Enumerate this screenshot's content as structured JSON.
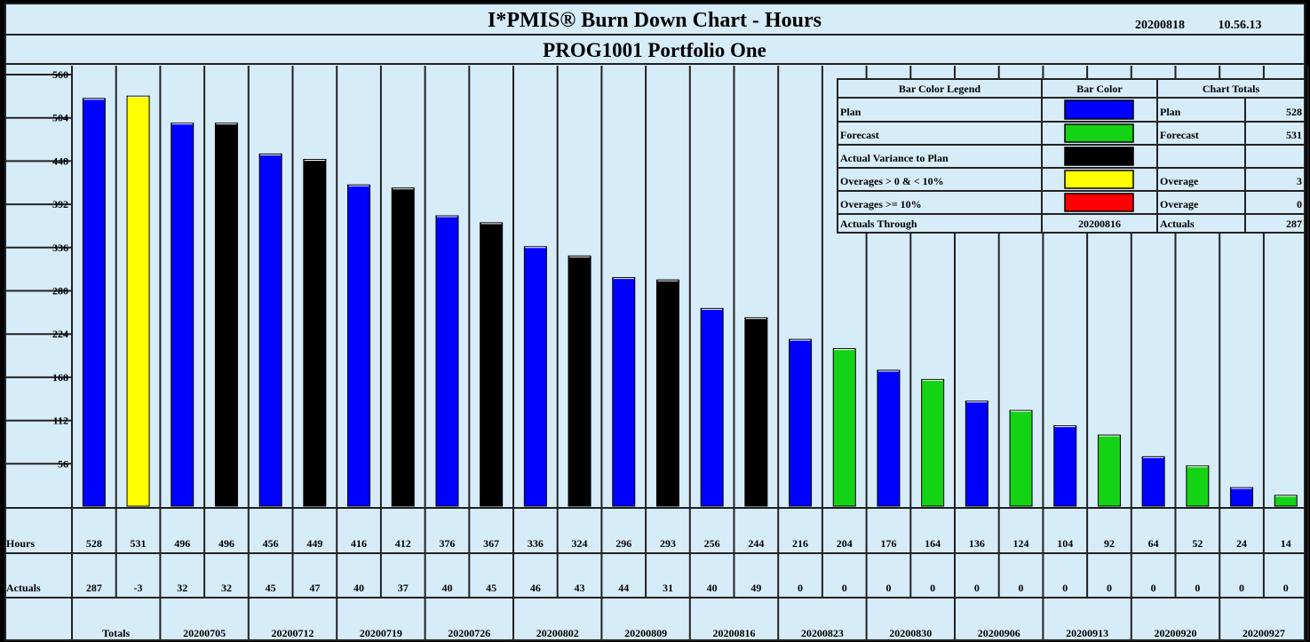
{
  "header": {
    "title": "I*PMIS® Burn Down Chart - Hours",
    "date": "20200818",
    "time": "10.56.13",
    "subtitle": "PROG1001 Portfolio One"
  },
  "colors": {
    "background": "#d6ecf8",
    "grid": "#222222",
    "plan": "#0000ff",
    "forecast": "#14d214",
    "actual_variance": "#000000",
    "overage_lt_10": "#ffff00",
    "overage_ge_10": "#ff0000"
  },
  "chart_data": {
    "type": "bar",
    "title": "I*PMIS® Burn Down Chart - Hours",
    "ylim": [
      0,
      560
    ],
    "yticks": [
      56,
      112,
      168,
      224,
      280,
      336,
      392,
      448,
      504,
      560
    ],
    "grid": true,
    "legend_position": "top-right",
    "bars": [
      {
        "hours": 528,
        "actuals": "287",
        "kind": "plan"
      },
      {
        "hours": 531,
        "actuals": "-3",
        "kind": "overage_lt_10"
      },
      {
        "hours": 496,
        "actuals": "32",
        "kind": "plan"
      },
      {
        "hours": 496,
        "actuals": "32",
        "kind": "actual_variance"
      },
      {
        "hours": 456,
        "actuals": "45",
        "kind": "plan"
      },
      {
        "hours": 449,
        "actuals": "47",
        "kind": "actual_variance"
      },
      {
        "hours": 416,
        "actuals": "40",
        "kind": "plan"
      },
      {
        "hours": 412,
        "actuals": "37",
        "kind": "actual_variance"
      },
      {
        "hours": 376,
        "actuals": "40",
        "kind": "plan"
      },
      {
        "hours": 367,
        "actuals": "45",
        "kind": "actual_variance"
      },
      {
        "hours": 336,
        "actuals": "46",
        "kind": "plan"
      },
      {
        "hours": 324,
        "actuals": "43",
        "kind": "actual_variance"
      },
      {
        "hours": 296,
        "actuals": "44",
        "kind": "plan"
      },
      {
        "hours": 293,
        "actuals": "31",
        "kind": "actual_variance"
      },
      {
        "hours": 256,
        "actuals": "40",
        "kind": "plan"
      },
      {
        "hours": 244,
        "actuals": "49",
        "kind": "actual_variance"
      },
      {
        "hours": 216,
        "actuals": "0",
        "kind": "plan"
      },
      {
        "hours": 204,
        "actuals": "0",
        "kind": "forecast"
      },
      {
        "hours": 176,
        "actuals": "0",
        "kind": "plan"
      },
      {
        "hours": 164,
        "actuals": "0",
        "kind": "forecast"
      },
      {
        "hours": 136,
        "actuals": "0",
        "kind": "plan"
      },
      {
        "hours": 124,
        "actuals": "0",
        "kind": "forecast"
      },
      {
        "hours": 104,
        "actuals": "0",
        "kind": "plan"
      },
      {
        "hours": 92,
        "actuals": "0",
        "kind": "forecast"
      },
      {
        "hours": 64,
        "actuals": "0",
        "kind": "plan"
      },
      {
        "hours": 52,
        "actuals": "0",
        "kind": "forecast"
      },
      {
        "hours": 24,
        "actuals": "0",
        "kind": "plan"
      },
      {
        "hours": 14,
        "actuals": "0",
        "kind": "forecast"
      }
    ],
    "period_labels": [
      "Totals",
      "20200705",
      "20200712",
      "20200719",
      "20200726",
      "20200802",
      "20200809",
      "20200816",
      "20200823",
      "20200830",
      "20200906",
      "20200913",
      "20200920",
      "20200927"
    ]
  },
  "row_labels": {
    "hours": "Hours",
    "actuals": "Actuals"
  },
  "legend": {
    "header_legend": "Bar Color Legend",
    "header_color": "Bar Color",
    "header_totals": "Chart Totals",
    "rows": [
      {
        "label": "Plan",
        "swatch": "plan",
        "total_label": "Plan",
        "total_value": "528"
      },
      {
        "label": "Forecast",
        "swatch": "forecast",
        "total_label": "Forecast",
        "total_value": "531"
      },
      {
        "label": "Actual Variance to Plan",
        "swatch": "actual_variance",
        "total_label": "",
        "total_value": ""
      },
      {
        "label": "Overages > 0 & < 10%",
        "swatch": "overage_lt_10",
        "total_label": "Overage",
        "total_value": "3"
      },
      {
        "label": "Overages >= 10%",
        "swatch": "overage_ge_10",
        "total_label": "Overage",
        "total_value": "0"
      }
    ],
    "actuals_through_label": "Actuals Through",
    "actuals_through_value": "20200816",
    "actuals_total_label": "Actuals",
    "actuals_total_value": "287"
  }
}
